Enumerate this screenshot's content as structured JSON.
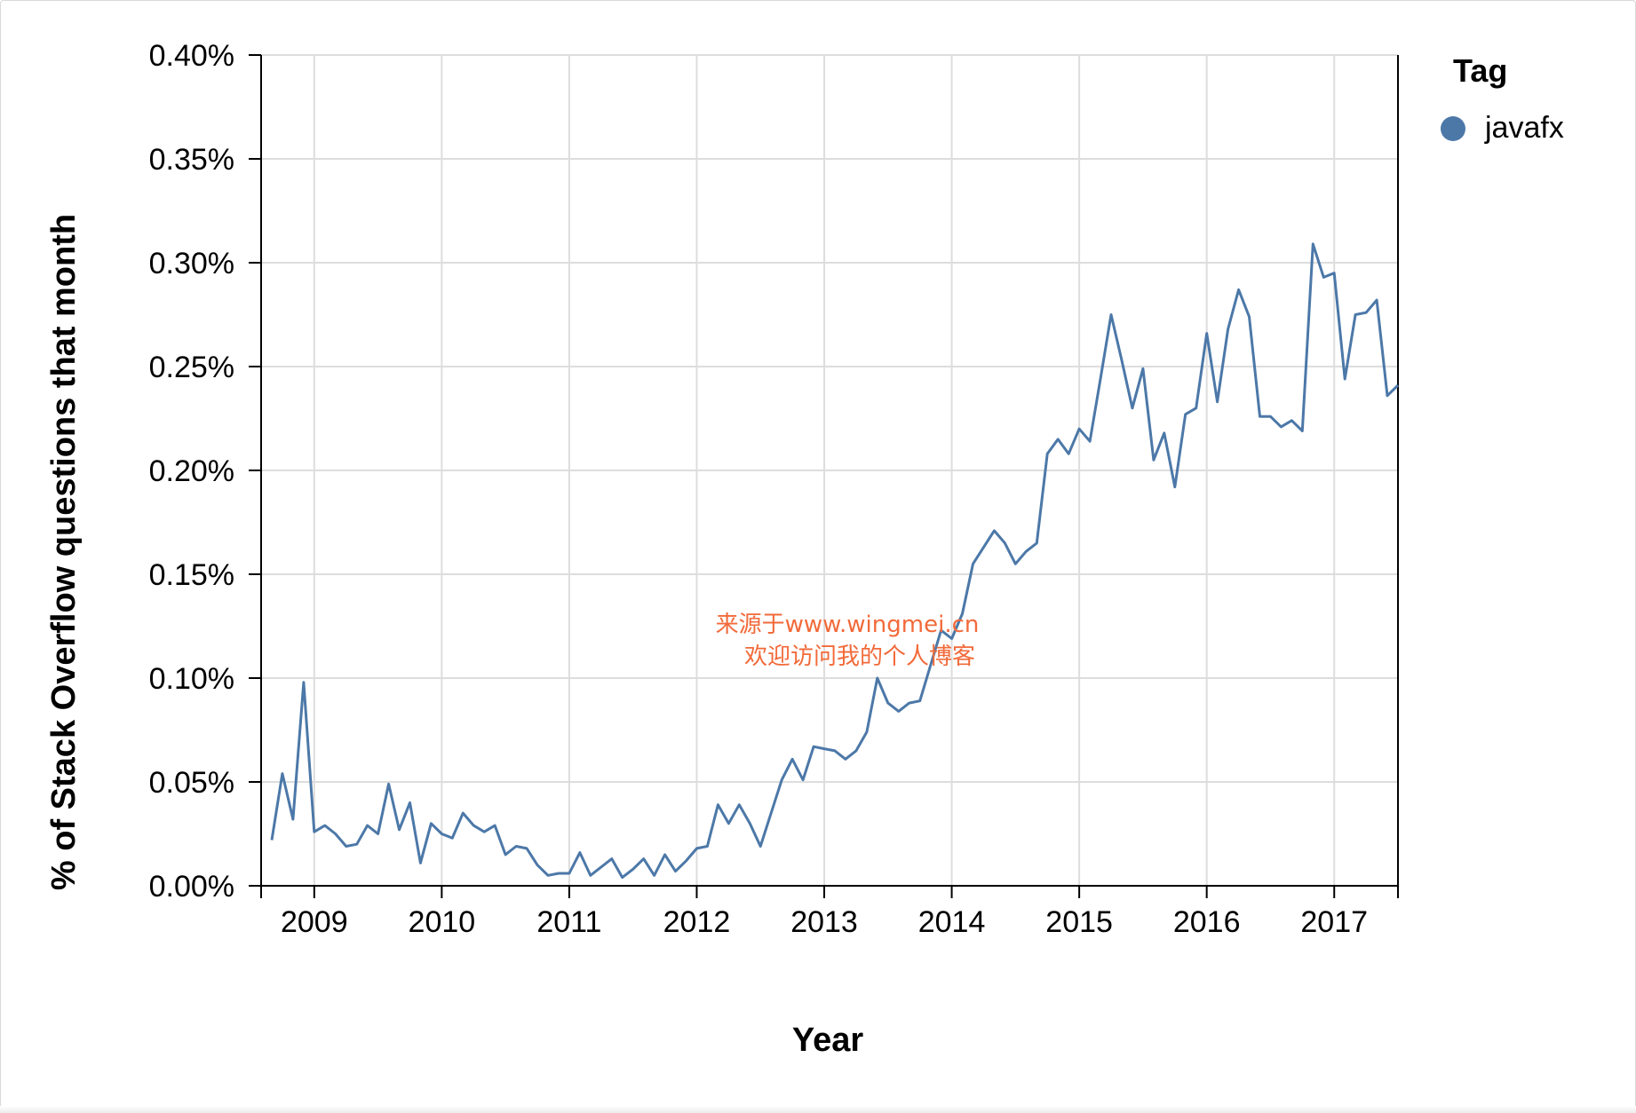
{
  "chart_data": {
    "type": "line",
    "xlabel": "Year",
    "ylabel": "% of Stack Overflow questions that month",
    "ylim": [
      0,
      0.004
    ],
    "y_ticks": [
      {
        "value": 0.0,
        "label": "0.00%"
      },
      {
        "value": 0.0005,
        "label": "0.05%"
      },
      {
        "value": 0.001,
        "label": "0.10%"
      },
      {
        "value": 0.0015,
        "label": "0.15%"
      },
      {
        "value": 0.002,
        "label": "0.20%"
      },
      {
        "value": 0.0025,
        "label": "0.25%"
      },
      {
        "value": 0.003,
        "label": "0.30%"
      },
      {
        "value": 0.0035,
        "label": "0.35%"
      },
      {
        "value": 0.004,
        "label": "0.40%"
      }
    ],
    "xlim": [
      "2008-08",
      "2017-07"
    ],
    "x_ticks": [
      "2009",
      "2010",
      "2011",
      "2012",
      "2013",
      "2014",
      "2015",
      "2016",
      "2017"
    ],
    "grid": true,
    "legend": {
      "title": "Tag",
      "position": "right"
    },
    "series": [
      {
        "name": "javafx",
        "color": "#4c78a8",
        "points": [
          [
            "2008-09",
            0.00022
          ],
          [
            "2008-10",
            0.00054
          ],
          [
            "2008-11",
            0.00032
          ],
          [
            "2008-12",
            0.00098
          ],
          [
            "2009-01",
            0.00026
          ],
          [
            "2009-02",
            0.00029
          ],
          [
            "2009-03",
            0.00025
          ],
          [
            "2009-04",
            0.00019
          ],
          [
            "2009-05",
            0.0002
          ],
          [
            "2009-06",
            0.00029
          ],
          [
            "2009-07",
            0.00025
          ],
          [
            "2009-08",
            0.00049
          ],
          [
            "2009-09",
            0.00027
          ],
          [
            "2009-10",
            0.0004
          ],
          [
            "2009-11",
            0.00011
          ],
          [
            "2009-12",
            0.0003
          ],
          [
            "2010-01",
            0.00025
          ],
          [
            "2010-02",
            0.00023
          ],
          [
            "2010-03",
            0.00035
          ],
          [
            "2010-04",
            0.00029
          ],
          [
            "2010-05",
            0.00026
          ],
          [
            "2010-06",
            0.00029
          ],
          [
            "2010-07",
            0.00015
          ],
          [
            "2010-08",
            0.00019
          ],
          [
            "2010-09",
            0.00018
          ],
          [
            "2010-10",
            0.0001
          ],
          [
            "2010-11",
            5e-05
          ],
          [
            "2010-12",
            6e-05
          ],
          [
            "2011-01",
            6e-05
          ],
          [
            "2011-02",
            0.00016
          ],
          [
            "2011-03",
            5e-05
          ],
          [
            "2011-04",
            9e-05
          ],
          [
            "2011-05",
            0.00013
          ],
          [
            "2011-06",
            4e-05
          ],
          [
            "2011-07",
            8e-05
          ],
          [
            "2011-08",
            0.00013
          ],
          [
            "2011-09",
            5e-05
          ],
          [
            "2011-10",
            0.00015
          ],
          [
            "2011-11",
            7e-05
          ],
          [
            "2011-12",
            0.00012
          ],
          [
            "2012-01",
            0.00018
          ],
          [
            "2012-02",
            0.00019
          ],
          [
            "2012-03",
            0.00039
          ],
          [
            "2012-04",
            0.0003
          ],
          [
            "2012-05",
            0.00039
          ],
          [
            "2012-06",
            0.0003
          ],
          [
            "2012-07",
            0.00019
          ],
          [
            "2012-08",
            0.00035
          ],
          [
            "2012-09",
            0.00051
          ],
          [
            "2012-10",
            0.00061
          ],
          [
            "2012-11",
            0.00051
          ],
          [
            "2012-12",
            0.00067
          ],
          [
            "2013-01",
            0.00066
          ],
          [
            "2013-02",
            0.00065
          ],
          [
            "2013-03",
            0.00061
          ],
          [
            "2013-04",
            0.00065
          ],
          [
            "2013-05",
            0.00074
          ],
          [
            "2013-06",
            0.001
          ],
          [
            "2013-07",
            0.00088
          ],
          [
            "2013-08",
            0.00084
          ],
          [
            "2013-09",
            0.00088
          ],
          [
            "2013-10",
            0.00089
          ],
          [
            "2013-11",
            0.00106
          ],
          [
            "2013-12",
            0.00123
          ],
          [
            "2014-01",
            0.00119
          ],
          [
            "2014-02",
            0.00131
          ],
          [
            "2014-03",
            0.00155
          ],
          [
            "2014-04",
            0.00163
          ],
          [
            "2014-05",
            0.00171
          ],
          [
            "2014-06",
            0.00165
          ],
          [
            "2014-07",
            0.00155
          ],
          [
            "2014-08",
            0.00161
          ],
          [
            "2014-09",
            0.00165
          ],
          [
            "2014-10",
            0.00208
          ],
          [
            "2014-11",
            0.00215
          ],
          [
            "2014-12",
            0.00208
          ],
          [
            "2015-01",
            0.0022
          ],
          [
            "2015-02",
            0.00214
          ],
          [
            "2015-03",
            0.00244
          ],
          [
            "2015-04",
            0.00275
          ],
          [
            "2015-05",
            0.00253
          ],
          [
            "2015-06",
            0.0023
          ],
          [
            "2015-07",
            0.00249
          ],
          [
            "2015-08",
            0.00205
          ],
          [
            "2015-09",
            0.00218
          ],
          [
            "2015-10",
            0.00192
          ],
          [
            "2015-11",
            0.00227
          ],
          [
            "2015-12",
            0.0023
          ],
          [
            "2016-01",
            0.00266
          ],
          [
            "2016-02",
            0.00233
          ],
          [
            "2016-03",
            0.00268
          ],
          [
            "2016-04",
            0.00287
          ],
          [
            "2016-05",
            0.00274
          ],
          [
            "2016-06",
            0.00226
          ],
          [
            "2016-07",
            0.00226
          ],
          [
            "2016-08",
            0.00221
          ],
          [
            "2016-09",
            0.00224
          ],
          [
            "2016-10",
            0.00219
          ],
          [
            "2016-11",
            0.00309
          ],
          [
            "2016-12",
            0.00293
          ],
          [
            "2017-01",
            0.00295
          ],
          [
            "2017-02",
            0.00244
          ],
          [
            "2017-03",
            0.00275
          ],
          [
            "2017-04",
            0.00276
          ],
          [
            "2017-05",
            0.00282
          ],
          [
            "2017-06",
            0.00236
          ],
          [
            "2017-07",
            0.00241
          ]
        ]
      }
    ]
  },
  "watermark": {
    "line1": "来源于www.wingmei.cn",
    "line2": "欢迎访问我的个人博客"
  }
}
